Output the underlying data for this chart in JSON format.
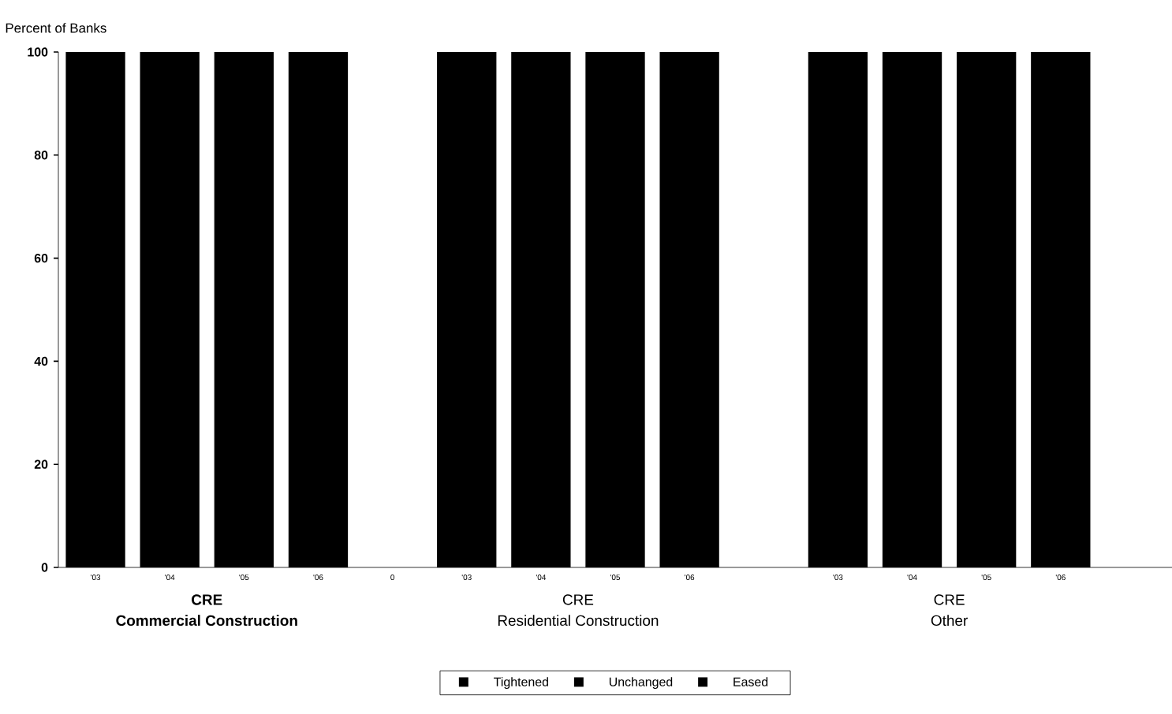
{
  "chart_data": {
    "type": "bar",
    "stacked": true,
    "ylabel": "Percent of Banks",
    "categories": [
      "'03",
      "'04",
      "'05",
      "'06",
      "0",
      "'03",
      "'04",
      "'05",
      "'06",
      null,
      "'03",
      "'04",
      "'05",
      "'06",
      null
    ],
    "series": [
      {
        "name": "Tightened",
        "color": "#000000",
        "values": [
          100,
          100,
          100,
          100,
          null,
          100,
          100,
          100,
          100,
          null,
          100,
          100,
          100,
          100,
          null
        ]
      },
      {
        "name": "Unchanged",
        "color": "#000000",
        "values": [
          null,
          null,
          null,
          null,
          null,
          null,
          null,
          null,
          null,
          null,
          null,
          null,
          null,
          null,
          null
        ]
      },
      {
        "name": "Eased",
        "color": "#000000",
        "values": [
          null,
          null,
          null,
          null,
          null,
          null,
          null,
          null,
          null,
          null,
          null,
          null,
          null,
          null,
          null
        ]
      }
    ],
    "ylim": [
      0,
      100
    ],
    "yticks": [
      0,
      20,
      40,
      60,
      80,
      100
    ],
    "annotations": [
      "CRE",
      "Commercial Construction",
      "CRE",
      "Residential Construction",
      "CRE",
      "Other"
    ],
    "legend": "bottom"
  }
}
